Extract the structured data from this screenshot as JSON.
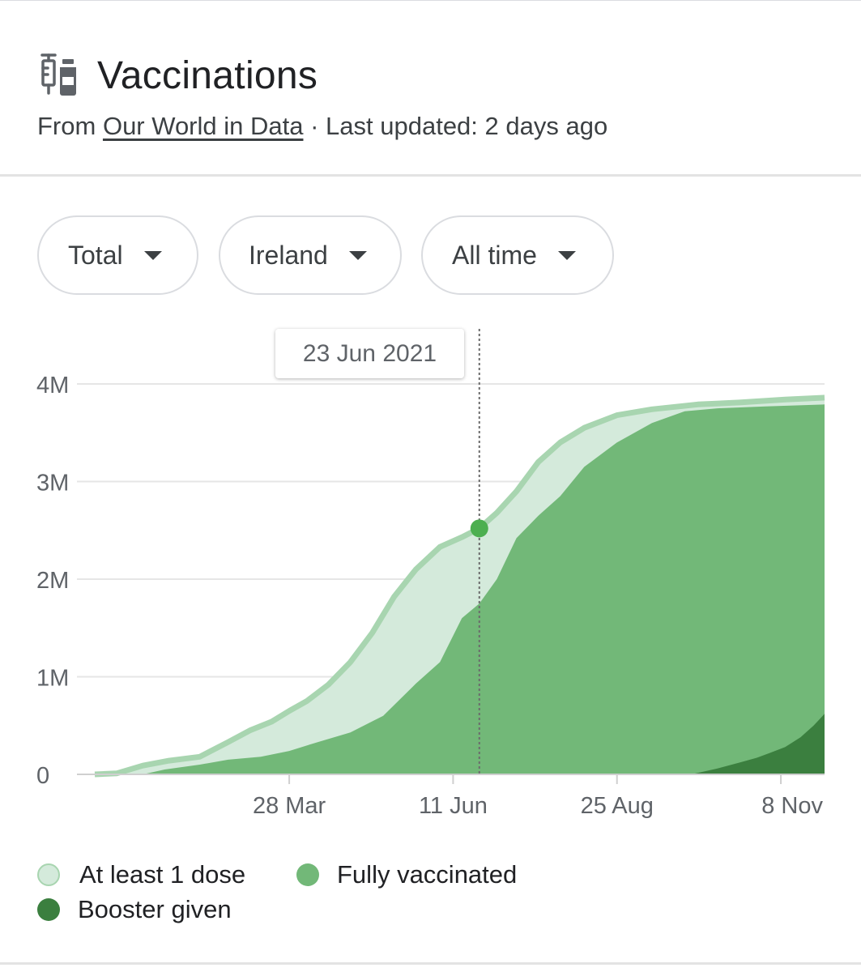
{
  "header": {
    "icon": "vaccine-syringe-vial-icon",
    "title": "Vaccinations",
    "source_prefix": "From",
    "source_link": "Our World in Data",
    "updated": "· Last updated: 2 days ago"
  },
  "filters": {
    "metric": "Total",
    "country": "Ireland",
    "range": "All time"
  },
  "tooltip": {
    "date": "23 Jun 2021"
  },
  "colors": {
    "at_least_one": "#d4eadb",
    "at_least_one_edge": "#a8d5b0",
    "fully": "#72b878",
    "booster": "#3b7f3f",
    "highlight_dot": "#4caf50"
  },
  "chart_data": {
    "type": "area",
    "x_type": "date",
    "xlim": [
      "2020-12-29",
      "2021-11-28"
    ],
    "ylim": [
      0,
      4000000
    ],
    "yticks": [
      0,
      1000000,
      2000000,
      3000000,
      4000000
    ],
    "ytick_labels": [
      "0",
      "1M",
      "2M",
      "3M",
      "4M"
    ],
    "xticks": [
      "2021-03-28",
      "2021-06-11",
      "2021-08-25",
      "2021-11-08"
    ],
    "xtick_labels": [
      "28 Mar",
      "11 Jun",
      "25 Aug",
      "8 Nov"
    ],
    "grid": true,
    "legend_position": "bottom",
    "highlight": {
      "x": "2021-06-23",
      "series": "At least 1 dose",
      "value": 2520000
    },
    "series": [
      {
        "name": "At least 1 dose",
        "points": [
          [
            "2020-12-29",
            0
          ],
          [
            "2021-01-08",
            10000
          ],
          [
            "2021-01-20",
            90000
          ],
          [
            "2021-02-01",
            140000
          ],
          [
            "2021-02-15",
            180000
          ],
          [
            "2021-02-28",
            330000
          ],
          [
            "2021-03-10",
            450000
          ],
          [
            "2021-03-20",
            540000
          ],
          [
            "2021-03-28",
            650000
          ],
          [
            "2021-04-05",
            750000
          ],
          [
            "2021-04-15",
            920000
          ],
          [
            "2021-04-25",
            1150000
          ],
          [
            "2021-05-05",
            1450000
          ],
          [
            "2021-05-15",
            1820000
          ],
          [
            "2021-05-25",
            2100000
          ],
          [
            "2021-06-05",
            2330000
          ],
          [
            "2021-06-15",
            2430000
          ],
          [
            "2021-06-23",
            2520000
          ],
          [
            "2021-07-01",
            2680000
          ],
          [
            "2021-07-10",
            2900000
          ],
          [
            "2021-07-20",
            3200000
          ],
          [
            "2021-07-30",
            3400000
          ],
          [
            "2021-08-10",
            3550000
          ],
          [
            "2021-08-25",
            3680000
          ],
          [
            "2021-09-10",
            3740000
          ],
          [
            "2021-10-01",
            3790000
          ],
          [
            "2021-10-20",
            3810000
          ],
          [
            "2021-11-10",
            3840000
          ],
          [
            "2021-11-28",
            3860000
          ]
        ]
      },
      {
        "name": "Fully vaccinated",
        "points": [
          [
            "2020-12-29",
            0
          ],
          [
            "2021-01-20",
            0
          ],
          [
            "2021-01-30",
            50000
          ],
          [
            "2021-02-15",
            100000
          ],
          [
            "2021-02-28",
            150000
          ],
          [
            "2021-03-15",
            180000
          ],
          [
            "2021-03-28",
            240000
          ],
          [
            "2021-04-10",
            330000
          ],
          [
            "2021-04-25",
            430000
          ],
          [
            "2021-05-10",
            600000
          ],
          [
            "2021-05-25",
            930000
          ],
          [
            "2021-06-05",
            1150000
          ],
          [
            "2021-06-15",
            1600000
          ],
          [
            "2021-06-23",
            1750000
          ],
          [
            "2021-07-01",
            2000000
          ],
          [
            "2021-07-10",
            2420000
          ],
          [
            "2021-07-20",
            2650000
          ],
          [
            "2021-07-30",
            2850000
          ],
          [
            "2021-08-10",
            3150000
          ],
          [
            "2021-08-25",
            3400000
          ],
          [
            "2021-09-10",
            3600000
          ],
          [
            "2021-09-25",
            3720000
          ],
          [
            "2021-10-10",
            3750000
          ],
          [
            "2021-11-01",
            3770000
          ],
          [
            "2021-11-28",
            3790000
          ]
        ]
      },
      {
        "name": "Booster given",
        "points": [
          [
            "2020-12-29",
            0
          ],
          [
            "2021-09-28",
            0
          ],
          [
            "2021-10-10",
            60000
          ],
          [
            "2021-10-20",
            120000
          ],
          [
            "2021-10-28",
            170000
          ],
          [
            "2021-11-03",
            220000
          ],
          [
            "2021-11-10",
            280000
          ],
          [
            "2021-11-17",
            380000
          ],
          [
            "2021-11-23",
            500000
          ],
          [
            "2021-11-28",
            620000
          ]
        ]
      }
    ]
  }
}
